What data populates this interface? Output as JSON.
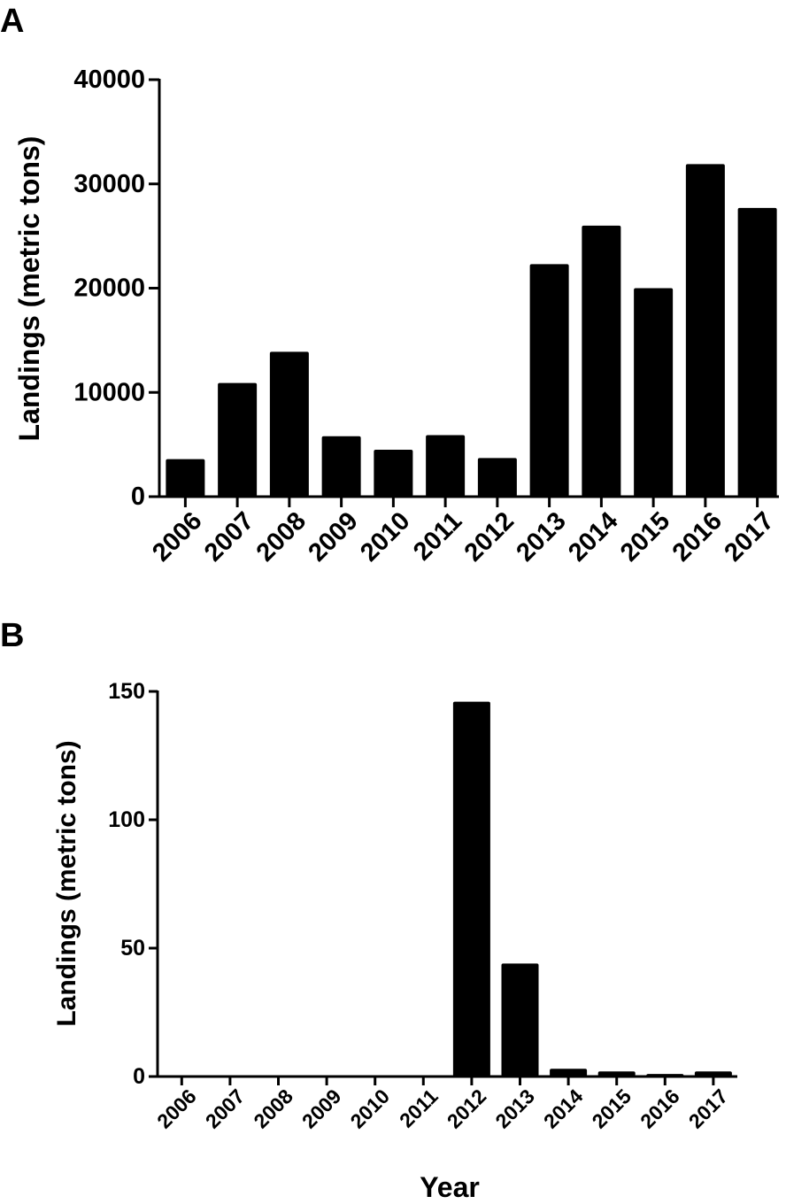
{
  "panels": {
    "a": {
      "letter": "A"
    },
    "b": {
      "letter": "B"
    }
  },
  "chart_data": [
    {
      "type": "bar",
      "panel": "A",
      "categories": [
        "2006",
        "2007",
        "2008",
        "2009",
        "2010",
        "2011",
        "2012",
        "2013",
        "2014",
        "2015",
        "2016",
        "2017"
      ],
      "values": [
        3600,
        10900,
        13900,
        5800,
        4500,
        5900,
        3700,
        22300,
        26000,
        20000,
        31900,
        27700
      ],
      "ylabel": "Landings (metric tons)",
      "xlabel": "",
      "ylim": [
        0,
        40000
      ],
      "yticks": [
        0,
        10000,
        20000,
        30000,
        40000
      ],
      "grid": false,
      "bar_color": "#000000"
    },
    {
      "type": "bar",
      "panel": "B",
      "categories": [
        "2006",
        "2007",
        "2008",
        "2009",
        "2010",
        "2011",
        "2012",
        "2013",
        "2014",
        "2015",
        "2016",
        "2017"
      ],
      "values": [
        0,
        0,
        0,
        0,
        0,
        0,
        146,
        44,
        3,
        2,
        1,
        2
      ],
      "ylabel": "Landings (metric tons)",
      "xlabel": "Year",
      "ylim": [
        0,
        150
      ],
      "yticks": [
        0,
        50,
        100,
        150
      ],
      "grid": false,
      "bar_color": "#000000"
    }
  ]
}
